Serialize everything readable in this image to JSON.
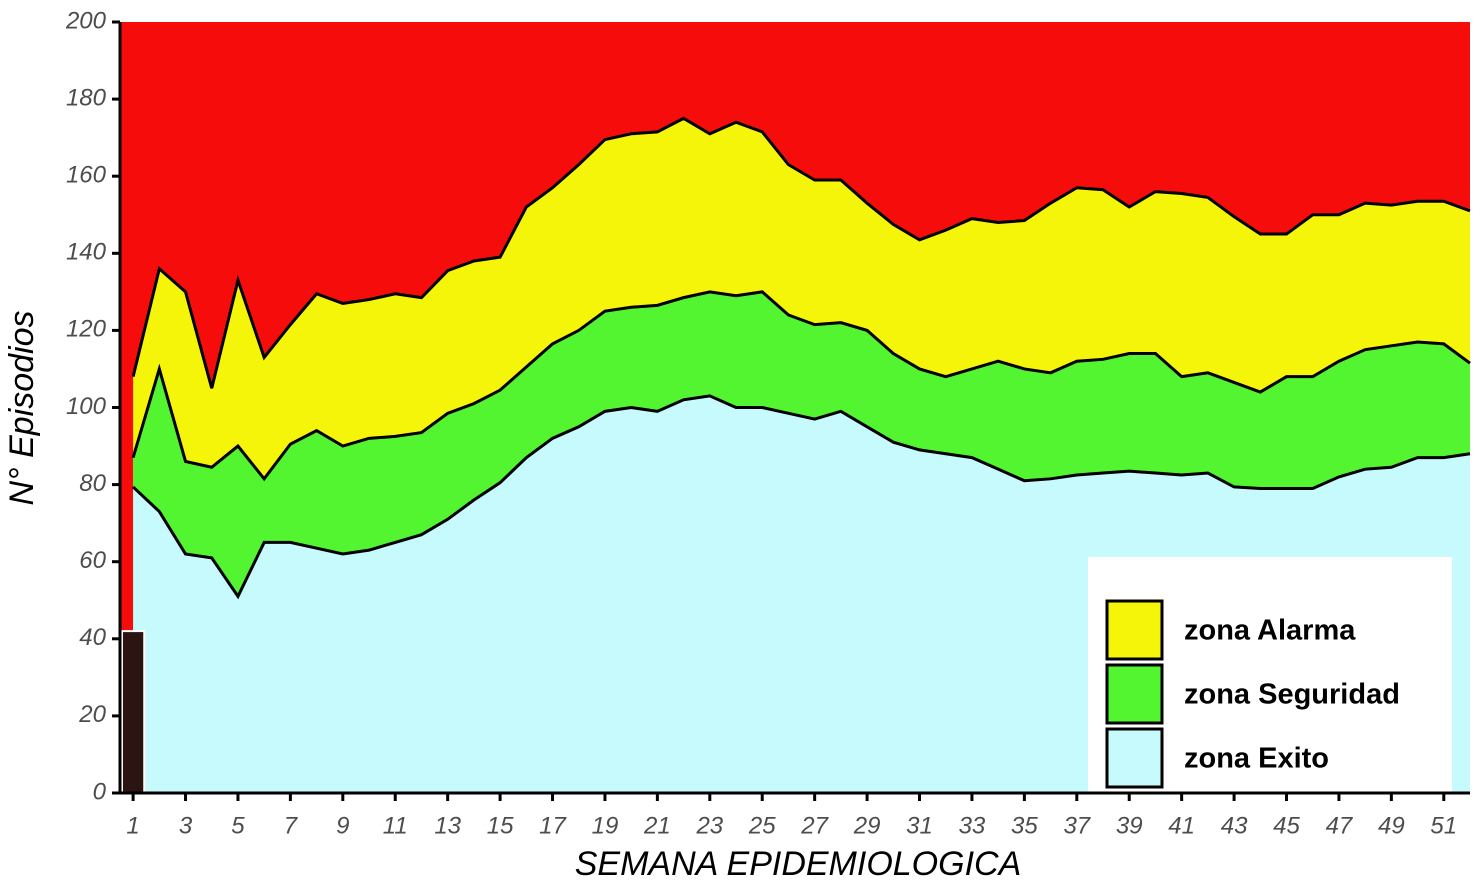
{
  "chart_data": {
    "type": "channel",
    "x_label": "SEMANA EPIDEMIOLOGICA",
    "y_label": "N° Episodios",
    "x": [
      1,
      2,
      3,
      4,
      5,
      6,
      7,
      8,
      9,
      10,
      11,
      12,
      13,
      14,
      15,
      16,
      17,
      18,
      19,
      20,
      21,
      22,
      23,
      24,
      25,
      26,
      27,
      28,
      29,
      30,
      31,
      32,
      33,
      34,
      35,
      36,
      37,
      38,
      39,
      40,
      41,
      42,
      43,
      44,
      45,
      46,
      47,
      48,
      49,
      50,
      51,
      52
    ],
    "xlim": [
      0.5,
      52
    ],
    "xticks": [
      1,
      3,
      5,
      7,
      9,
      11,
      13,
      15,
      17,
      19,
      21,
      23,
      25,
      27,
      29,
      31,
      33,
      35,
      37,
      39,
      41,
      43,
      45,
      47,
      49,
      51
    ],
    "ylim": [
      0,
      200
    ],
    "yticks": [
      0,
      20,
      40,
      60,
      80,
      100,
      120,
      140,
      160,
      180,
      200
    ],
    "background_color": "#f70c0c",
    "legend_position": "bottom-right",
    "series": [
      {
        "name": "zona Alarma",
        "color": "#f5f50a",
        "values": [
          108,
          136,
          130,
          105,
          133,
          113,
          121.5,
          129.5,
          127,
          128,
          129.5,
          128.5,
          135.5,
          138,
          139,
          152,
          157,
          163,
          169.5,
          171,
          171.5,
          175,
          171,
          174,
          171.5,
          163,
          159,
          159,
          153,
          147.5,
          143.5,
          146,
          149,
          148,
          148.5,
          153,
          157,
          156.5,
          152,
          156,
          155.5,
          154.5,
          149.5,
          145,
          145,
          150,
          150,
          153,
          152.5,
          153.5,
          153.5,
          151
        ]
      },
      {
        "name": "zona Seguridad",
        "color": "#52f52f",
        "values": [
          87,
          110,
          86,
          84.5,
          90,
          81.5,
          90.5,
          94,
          90,
          92,
          92.5,
          93.5,
          98.5,
          101,
          104.5,
          110.5,
          116.5,
          120,
          125,
          126,
          126.5,
          128.5,
          130,
          129,
          130,
          124,
          121.5,
          122,
          120,
          114,
          110,
          108,
          110,
          112,
          110,
          109,
          112,
          112.5,
          114,
          114,
          108,
          109,
          106.5,
          104,
          108,
          108,
          112,
          115,
          116,
          117,
          116.5,
          111.5
        ]
      },
      {
        "name": "zona Exito",
        "color": "#c6fafc",
        "values": [
          79.4,
          73,
          62,
          61,
          51,
          65,
          65,
          63.5,
          62,
          63,
          65,
          67,
          71,
          76,
          80.5,
          87,
          92,
          95,
          99,
          100,
          99,
          102,
          103,
          100,
          100,
          98.5,
          97,
          99,
          95,
          91,
          89,
          88,
          87,
          84,
          81,
          81.5,
          82.5,
          83,
          83.5,
          83,
          82.5,
          83,
          79.4,
          79,
          79,
          79,
          82,
          84,
          84.5,
          87,
          87,
          88
        ]
      }
    ],
    "bars": {
      "color": "#2b1512",
      "x": [
        1
      ],
      "values": [
        42
      ]
    }
  }
}
